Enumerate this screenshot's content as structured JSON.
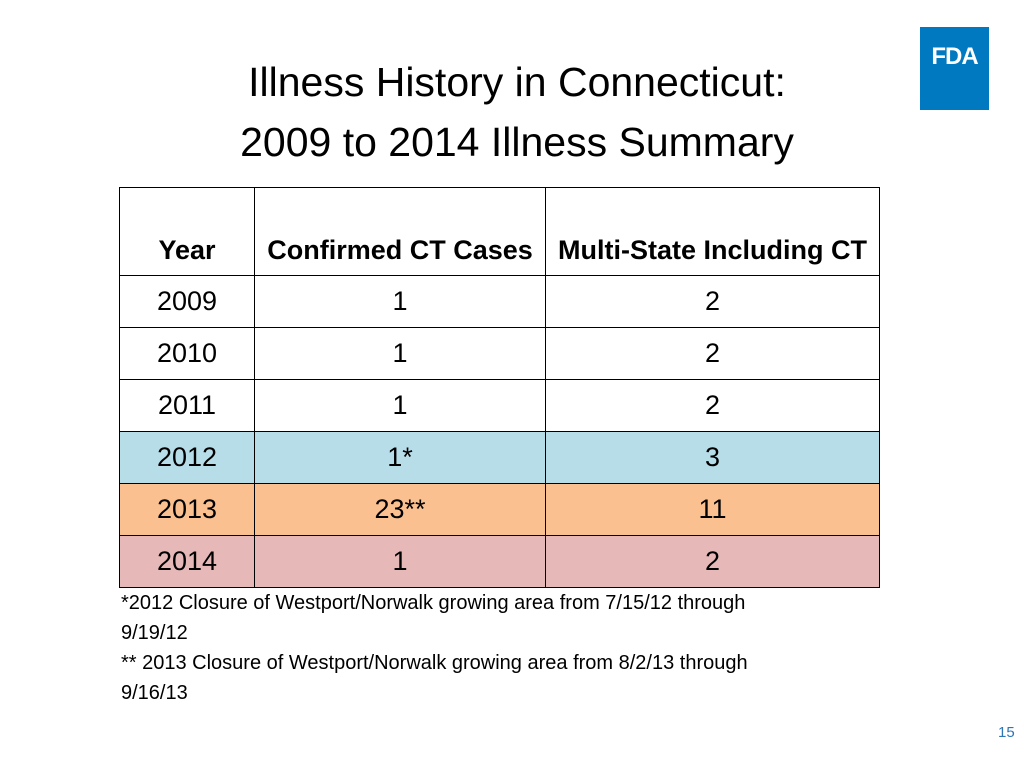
{
  "logo": "FDA",
  "title": [
    "Illness History in Connecticut:",
    "2009 to 2014 Illness Summary"
  ],
  "table": {
    "header": [
      "Year",
      "Confirmed CT Cases",
      "Multi-State Including CT"
    ],
    "rows": [
      [
        "2009",
        "1",
        "2"
      ],
      [
        "2010",
        "1",
        "2"
      ],
      [
        "2011",
        "1",
        "2"
      ],
      [
        "2012",
        "1*",
        "3"
      ],
      [
        "2013",
        "23**",
        "11"
      ],
      [
        "2014",
        "1",
        "2"
      ]
    ]
  },
  "footnotes": [
    "*2012 Closure of Westport/Norwalk growing area from 7/15/12 through 9/19/12",
    "** 2013 Closure of Westport/Norwalk growing area from 8/2/13 through 9/16/13"
  ],
  "page_number": "15"
}
